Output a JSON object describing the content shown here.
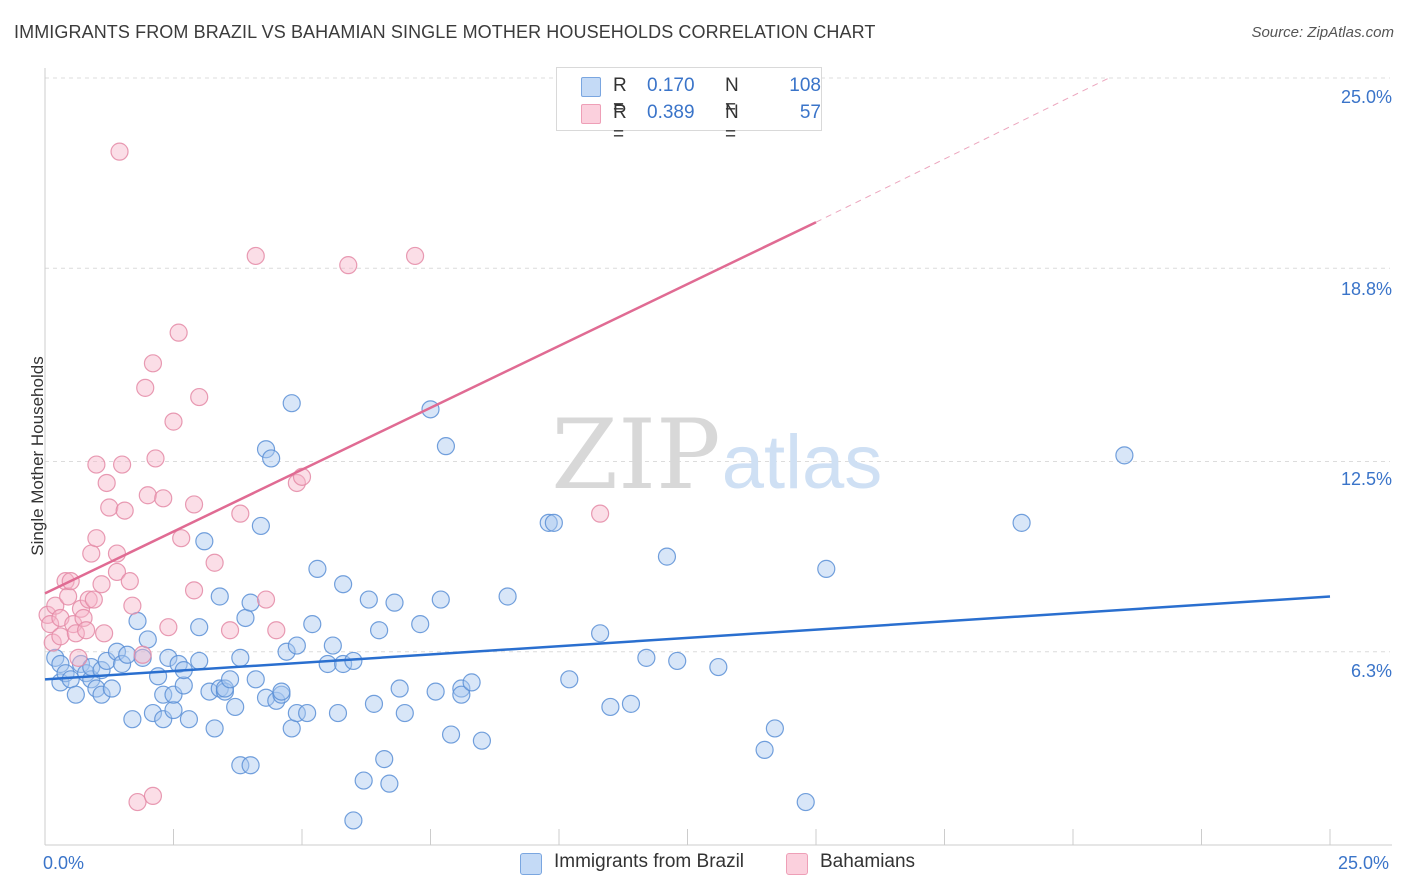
{
  "title": "IMMIGRANTS FROM BRAZIL VS BAHAMIAN SINGLE MOTHER HOUSEHOLDS CORRELATION CHART",
  "source": "Source: ZipAtlas.com",
  "watermark": {
    "zip": "ZIP",
    "atlas": "atlas"
  },
  "colors": {
    "blue_fill": "#a9c8f0",
    "blue_stroke": "#5b8fd6",
    "blue_line": "#2a6fcf",
    "pink_fill": "#f7b6c9",
    "pink_stroke": "#e48aa6",
    "pink_line": "#e06b93",
    "grid": "#dcdcdc",
    "tick_text": "#3a74c9"
  },
  "legend_top": {
    "rows": [
      {
        "r_label": "R =",
        "r_value": "0.170",
        "n_label": "N =",
        "n_value": "108"
      },
      {
        "r_label": "R =",
        "r_value": "0.389",
        "n_label": "N =",
        "n_value": "57"
      }
    ]
  },
  "chart_data": {
    "type": "scatter",
    "title": "IMMIGRANTS FROM BRAZIL VS BAHAMIAN SINGLE MOTHER HOUSEHOLDS CORRELATION CHART",
    "xlabel": "",
    "ylabel": "Single Mother Households",
    "xlim": [
      0,
      25
    ],
    "ylim": [
      0,
      25
    ],
    "x_tick_labels": [
      "0.0%",
      "25.0%"
    ],
    "y_ticks": [
      6.3,
      12.5,
      18.8,
      25.0
    ],
    "y_tick_labels": [
      "6.3%",
      "12.5%",
      "18.8%",
      "25.0%"
    ],
    "grid": true,
    "legend_position": "bottom",
    "series": [
      {
        "name": "Immigrants from Brazil",
        "r": 0.17,
        "n": 108,
        "trend": {
          "x": [
            0,
            25
          ],
          "y": [
            5.4,
            8.1
          ]
        },
        "points": [
          [
            0.2,
            6.1
          ],
          [
            0.3,
            5.9
          ],
          [
            0.3,
            5.3
          ],
          [
            0.4,
            5.6
          ],
          [
            0.5,
            5.4
          ],
          [
            0.6,
            4.9
          ],
          [
            0.7,
            5.9
          ],
          [
            0.8,
            5.6
          ],
          [
            0.9,
            5.4
          ],
          [
            0.9,
            5.8
          ],
          [
            1.0,
            5.1
          ],
          [
            1.1,
            5.7
          ],
          [
            1.1,
            4.9
          ],
          [
            1.2,
            6.0
          ],
          [
            1.3,
            5.1
          ],
          [
            1.4,
            6.3
          ],
          [
            1.5,
            5.9
          ],
          [
            1.6,
            6.2
          ],
          [
            1.7,
            4.1
          ],
          [
            1.8,
            7.3
          ],
          [
            1.9,
            6.1
          ],
          [
            2.0,
            6.7
          ],
          [
            2.1,
            4.3
          ],
          [
            2.2,
            5.5
          ],
          [
            2.3,
            4.9
          ],
          [
            2.3,
            4.1
          ],
          [
            2.4,
            6.1
          ],
          [
            2.5,
            4.4
          ],
          [
            2.5,
            4.9
          ],
          [
            2.6,
            5.9
          ],
          [
            2.7,
            5.2
          ],
          [
            2.7,
            5.7
          ],
          [
            2.8,
            4.1
          ],
          [
            3.0,
            7.1
          ],
          [
            3.0,
            6.0
          ],
          [
            3.1,
            9.9
          ],
          [
            3.2,
            5.0
          ],
          [
            3.3,
            3.8
          ],
          [
            3.4,
            5.1
          ],
          [
            3.4,
            8.1
          ],
          [
            3.5,
            5.0
          ],
          [
            3.5,
            5.1
          ],
          [
            3.6,
            5.4
          ],
          [
            3.7,
            4.5
          ],
          [
            3.8,
            2.6
          ],
          [
            3.8,
            6.1
          ],
          [
            3.9,
            7.4
          ],
          [
            4.0,
            2.6
          ],
          [
            4.0,
            7.9
          ],
          [
            4.1,
            5.4
          ],
          [
            4.2,
            10.4
          ],
          [
            4.3,
            12.9
          ],
          [
            4.3,
            4.8
          ],
          [
            4.4,
            12.6
          ],
          [
            4.5,
            4.7
          ],
          [
            4.6,
            4.9
          ],
          [
            4.6,
            5.0
          ],
          [
            4.7,
            6.3
          ],
          [
            4.8,
            3.8
          ],
          [
            4.9,
            6.5
          ],
          [
            4.9,
            4.3
          ],
          [
            4.8,
            14.4
          ],
          [
            5.1,
            4.3
          ],
          [
            5.2,
            7.2
          ],
          [
            5.3,
            9.0
          ],
          [
            5.5,
            5.9
          ],
          [
            5.6,
            6.5
          ],
          [
            5.7,
            4.3
          ],
          [
            5.8,
            8.5
          ],
          [
            5.8,
            5.9
          ],
          [
            6.0,
            6.0
          ],
          [
            6.0,
            0.8
          ],
          [
            6.2,
            2.1
          ],
          [
            6.3,
            8.0
          ],
          [
            6.4,
            4.6
          ],
          [
            6.5,
            7.0
          ],
          [
            6.6,
            2.8
          ],
          [
            6.7,
            2.0
          ],
          [
            6.8,
            7.9
          ],
          [
            6.9,
            5.1
          ],
          [
            7.0,
            4.3
          ],
          [
            7.3,
            7.2
          ],
          [
            7.5,
            14.2
          ],
          [
            7.6,
            5.0
          ],
          [
            7.7,
            8.0
          ],
          [
            7.8,
            13.0
          ],
          [
            7.9,
            3.6
          ],
          [
            8.1,
            5.1
          ],
          [
            8.1,
            4.9
          ],
          [
            8.3,
            5.3
          ],
          [
            8.5,
            3.4
          ],
          [
            9.0,
            8.1
          ],
          [
            9.8,
            10.5
          ],
          [
            9.9,
            10.5
          ],
          [
            10.2,
            5.4
          ],
          [
            10.8,
            6.9
          ],
          [
            11.0,
            4.5
          ],
          [
            11.4,
            4.6
          ],
          [
            11.7,
            6.1
          ],
          [
            12.1,
            9.4
          ],
          [
            12.3,
            6.0
          ],
          [
            13.1,
            5.8
          ],
          [
            14.0,
            3.1
          ],
          [
            14.2,
            3.8
          ],
          [
            14.8,
            1.4
          ],
          [
            15.2,
            9.0
          ],
          [
            19.0,
            10.5
          ],
          [
            21.0,
            12.7
          ]
        ]
      },
      {
        "name": "Bahamians",
        "r": 0.389,
        "n": 57,
        "trend": {
          "x": [
            0,
            15
          ],
          "y": [
            8.2,
            20.3
          ]
        },
        "trend_extension": {
          "x": [
            15,
            20.7
          ],
          "y": [
            20.3,
            25
          ]
        },
        "points": [
          [
            0.05,
            7.5
          ],
          [
            0.1,
            7.2
          ],
          [
            0.15,
            6.6
          ],
          [
            0.2,
            7.8
          ],
          [
            0.3,
            6.8
          ],
          [
            0.3,
            7.4
          ],
          [
            0.4,
            8.6
          ],
          [
            0.45,
            8.1
          ],
          [
            0.5,
            8.6
          ],
          [
            0.55,
            7.2
          ],
          [
            0.6,
            6.9
          ],
          [
            0.65,
            6.1
          ],
          [
            0.7,
            7.7
          ],
          [
            0.75,
            7.4
          ],
          [
            0.8,
            7.0
          ],
          [
            0.85,
            8.0
          ],
          [
            0.9,
            9.5
          ],
          [
            0.95,
            8.0
          ],
          [
            1.0,
            10.0
          ],
          [
            1.0,
            12.4
          ],
          [
            1.1,
            8.5
          ],
          [
            1.15,
            6.9
          ],
          [
            1.2,
            11.8
          ],
          [
            1.25,
            11.0
          ],
          [
            1.4,
            9.5
          ],
          [
            1.4,
            8.9
          ],
          [
            1.45,
            22.6
          ],
          [
            1.5,
            12.4
          ],
          [
            1.55,
            10.9
          ],
          [
            1.65,
            8.6
          ],
          [
            1.7,
            7.8
          ],
          [
            1.8,
            1.4
          ],
          [
            1.9,
            6.2
          ],
          [
            1.95,
            14.9
          ],
          [
            2.0,
            11.4
          ],
          [
            2.1,
            1.6
          ],
          [
            2.1,
            15.7
          ],
          [
            2.15,
            12.6
          ],
          [
            2.3,
            11.3
          ],
          [
            2.4,
            7.1
          ],
          [
            2.5,
            13.8
          ],
          [
            2.6,
            16.7
          ],
          [
            2.65,
            10.0
          ],
          [
            2.9,
            8.3
          ],
          [
            2.9,
            11.1
          ],
          [
            3.0,
            14.6
          ],
          [
            3.3,
            9.2
          ],
          [
            3.6,
            7.0
          ],
          [
            3.8,
            10.8
          ],
          [
            4.1,
            19.2
          ],
          [
            4.3,
            8.0
          ],
          [
            4.5,
            7.0
          ],
          [
            4.9,
            11.8
          ],
          [
            5.0,
            12.0
          ],
          [
            5.9,
            18.9
          ],
          [
            7.2,
            19.2
          ],
          [
            10.8,
            10.8
          ]
        ]
      }
    ]
  },
  "legend_bottom": [
    {
      "label": "Immigrants from Brazil"
    },
    {
      "label": "Bahamians"
    }
  ]
}
